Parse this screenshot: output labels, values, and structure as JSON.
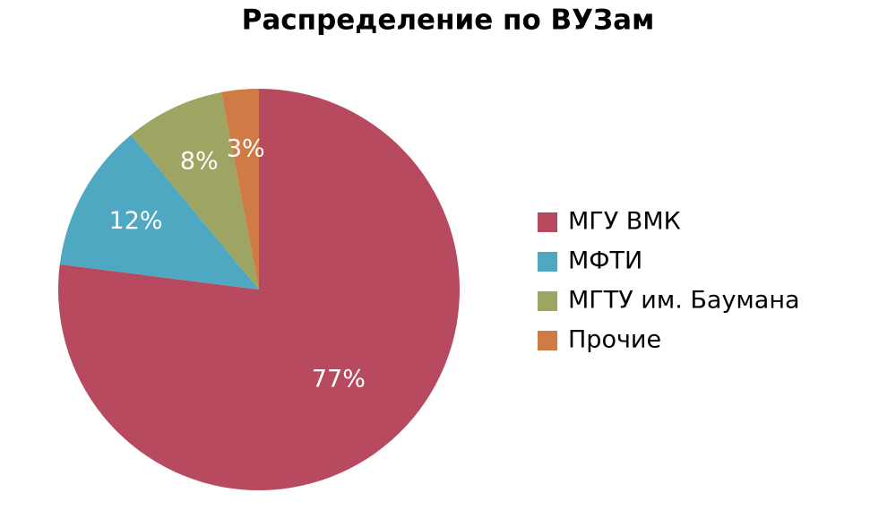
{
  "chart_data": {
    "type": "pie",
    "title": "Распределение по ВУЗам",
    "categories": [
      "МГУ ВМК",
      "МФТИ",
      "МГТУ им. Баумана",
      "Прочие"
    ],
    "values": [
      77,
      12,
      8,
      3
    ],
    "value_labels": [
      "77%",
      "12%",
      "8%",
      "3%"
    ],
    "colors": [
      "#b84a60",
      "#4fa8c2",
      "#9ea462",
      "#d07a45"
    ],
    "legend": "right"
  }
}
